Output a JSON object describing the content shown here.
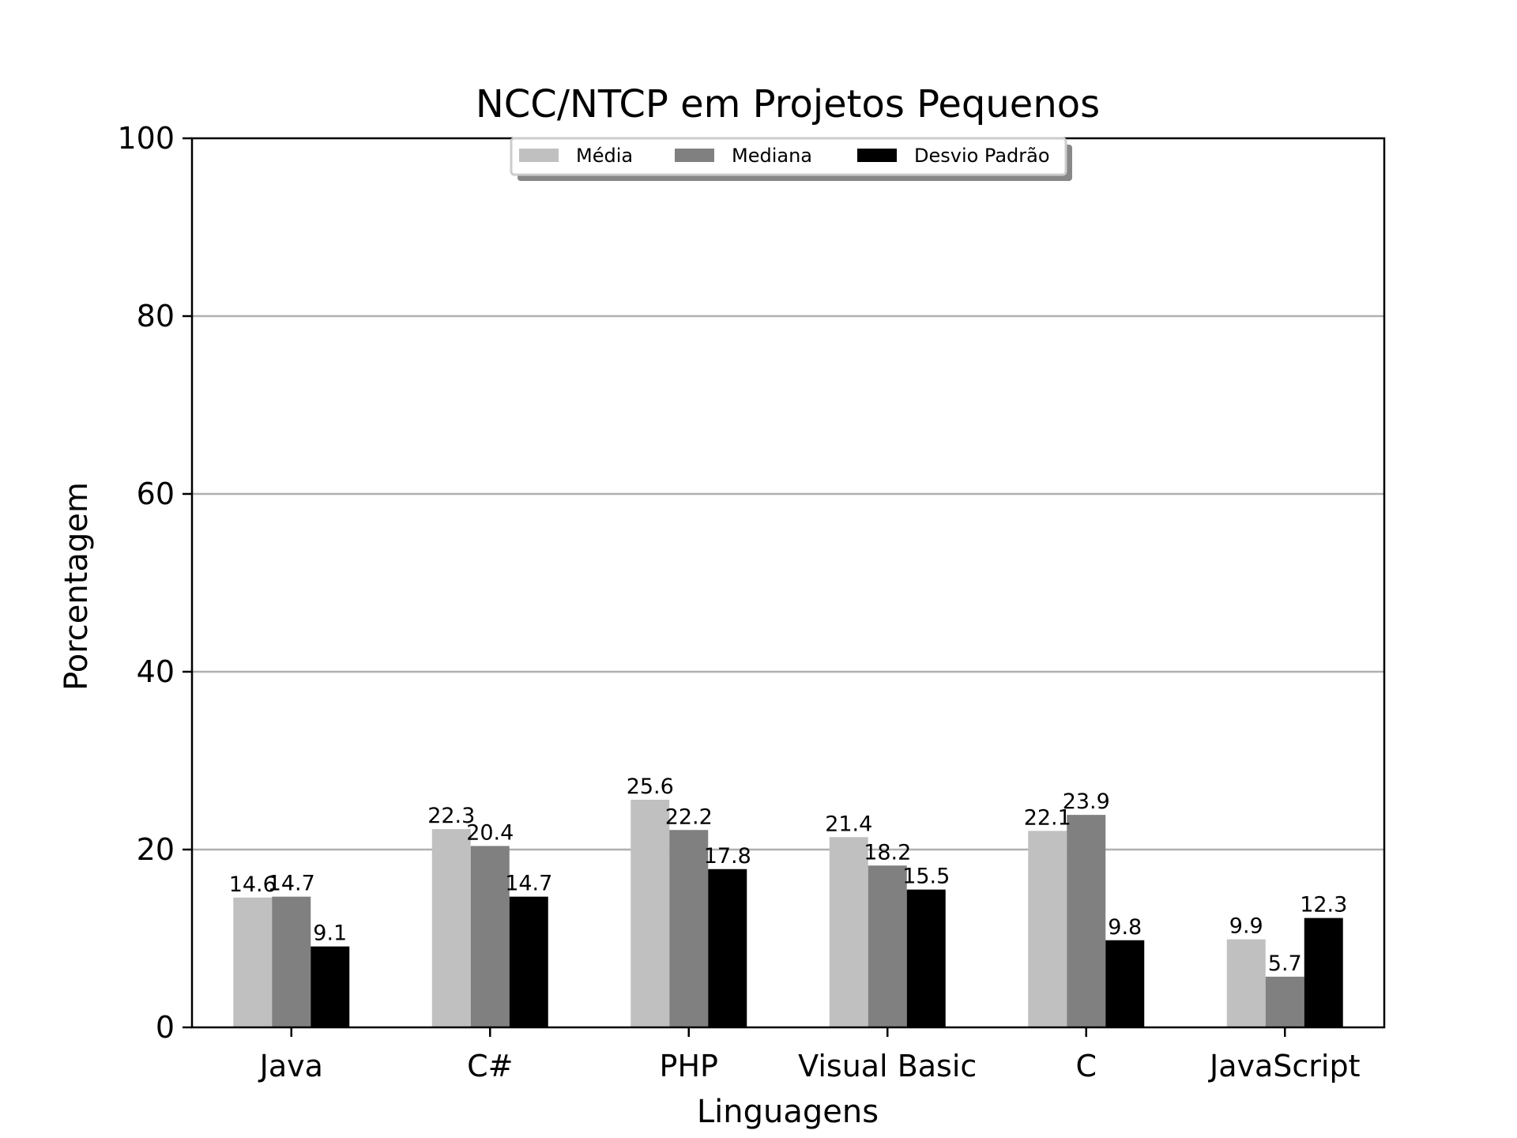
{
  "chart_data": {
    "type": "bar",
    "title": "NCC/NTCP em Projetos Pequenos",
    "xlabel": "Linguagens",
    "ylabel": "Porcentagem",
    "ylim": [
      0,
      100
    ],
    "yticks": [
      0,
      20,
      40,
      60,
      80,
      100
    ],
    "grid": "horizontal",
    "legend_position": "top-center",
    "categories": [
      "Java",
      "C#",
      "PHP",
      "Visual Basic",
      "C",
      "JavaScript"
    ],
    "series": [
      {
        "name": "Média",
        "color": "#c0c0c0",
        "values": [
          14.6,
          22.3,
          25.6,
          21.4,
          22.1,
          9.9
        ]
      },
      {
        "name": "Mediana",
        "color": "#808080",
        "values": [
          14.7,
          20.4,
          22.2,
          18.2,
          23.9,
          5.7
        ]
      },
      {
        "name": "Desvio Padrão",
        "color": "#000000",
        "values": [
          9.1,
          14.7,
          17.8,
          15.5,
          9.8,
          12.3
        ]
      }
    ]
  }
}
